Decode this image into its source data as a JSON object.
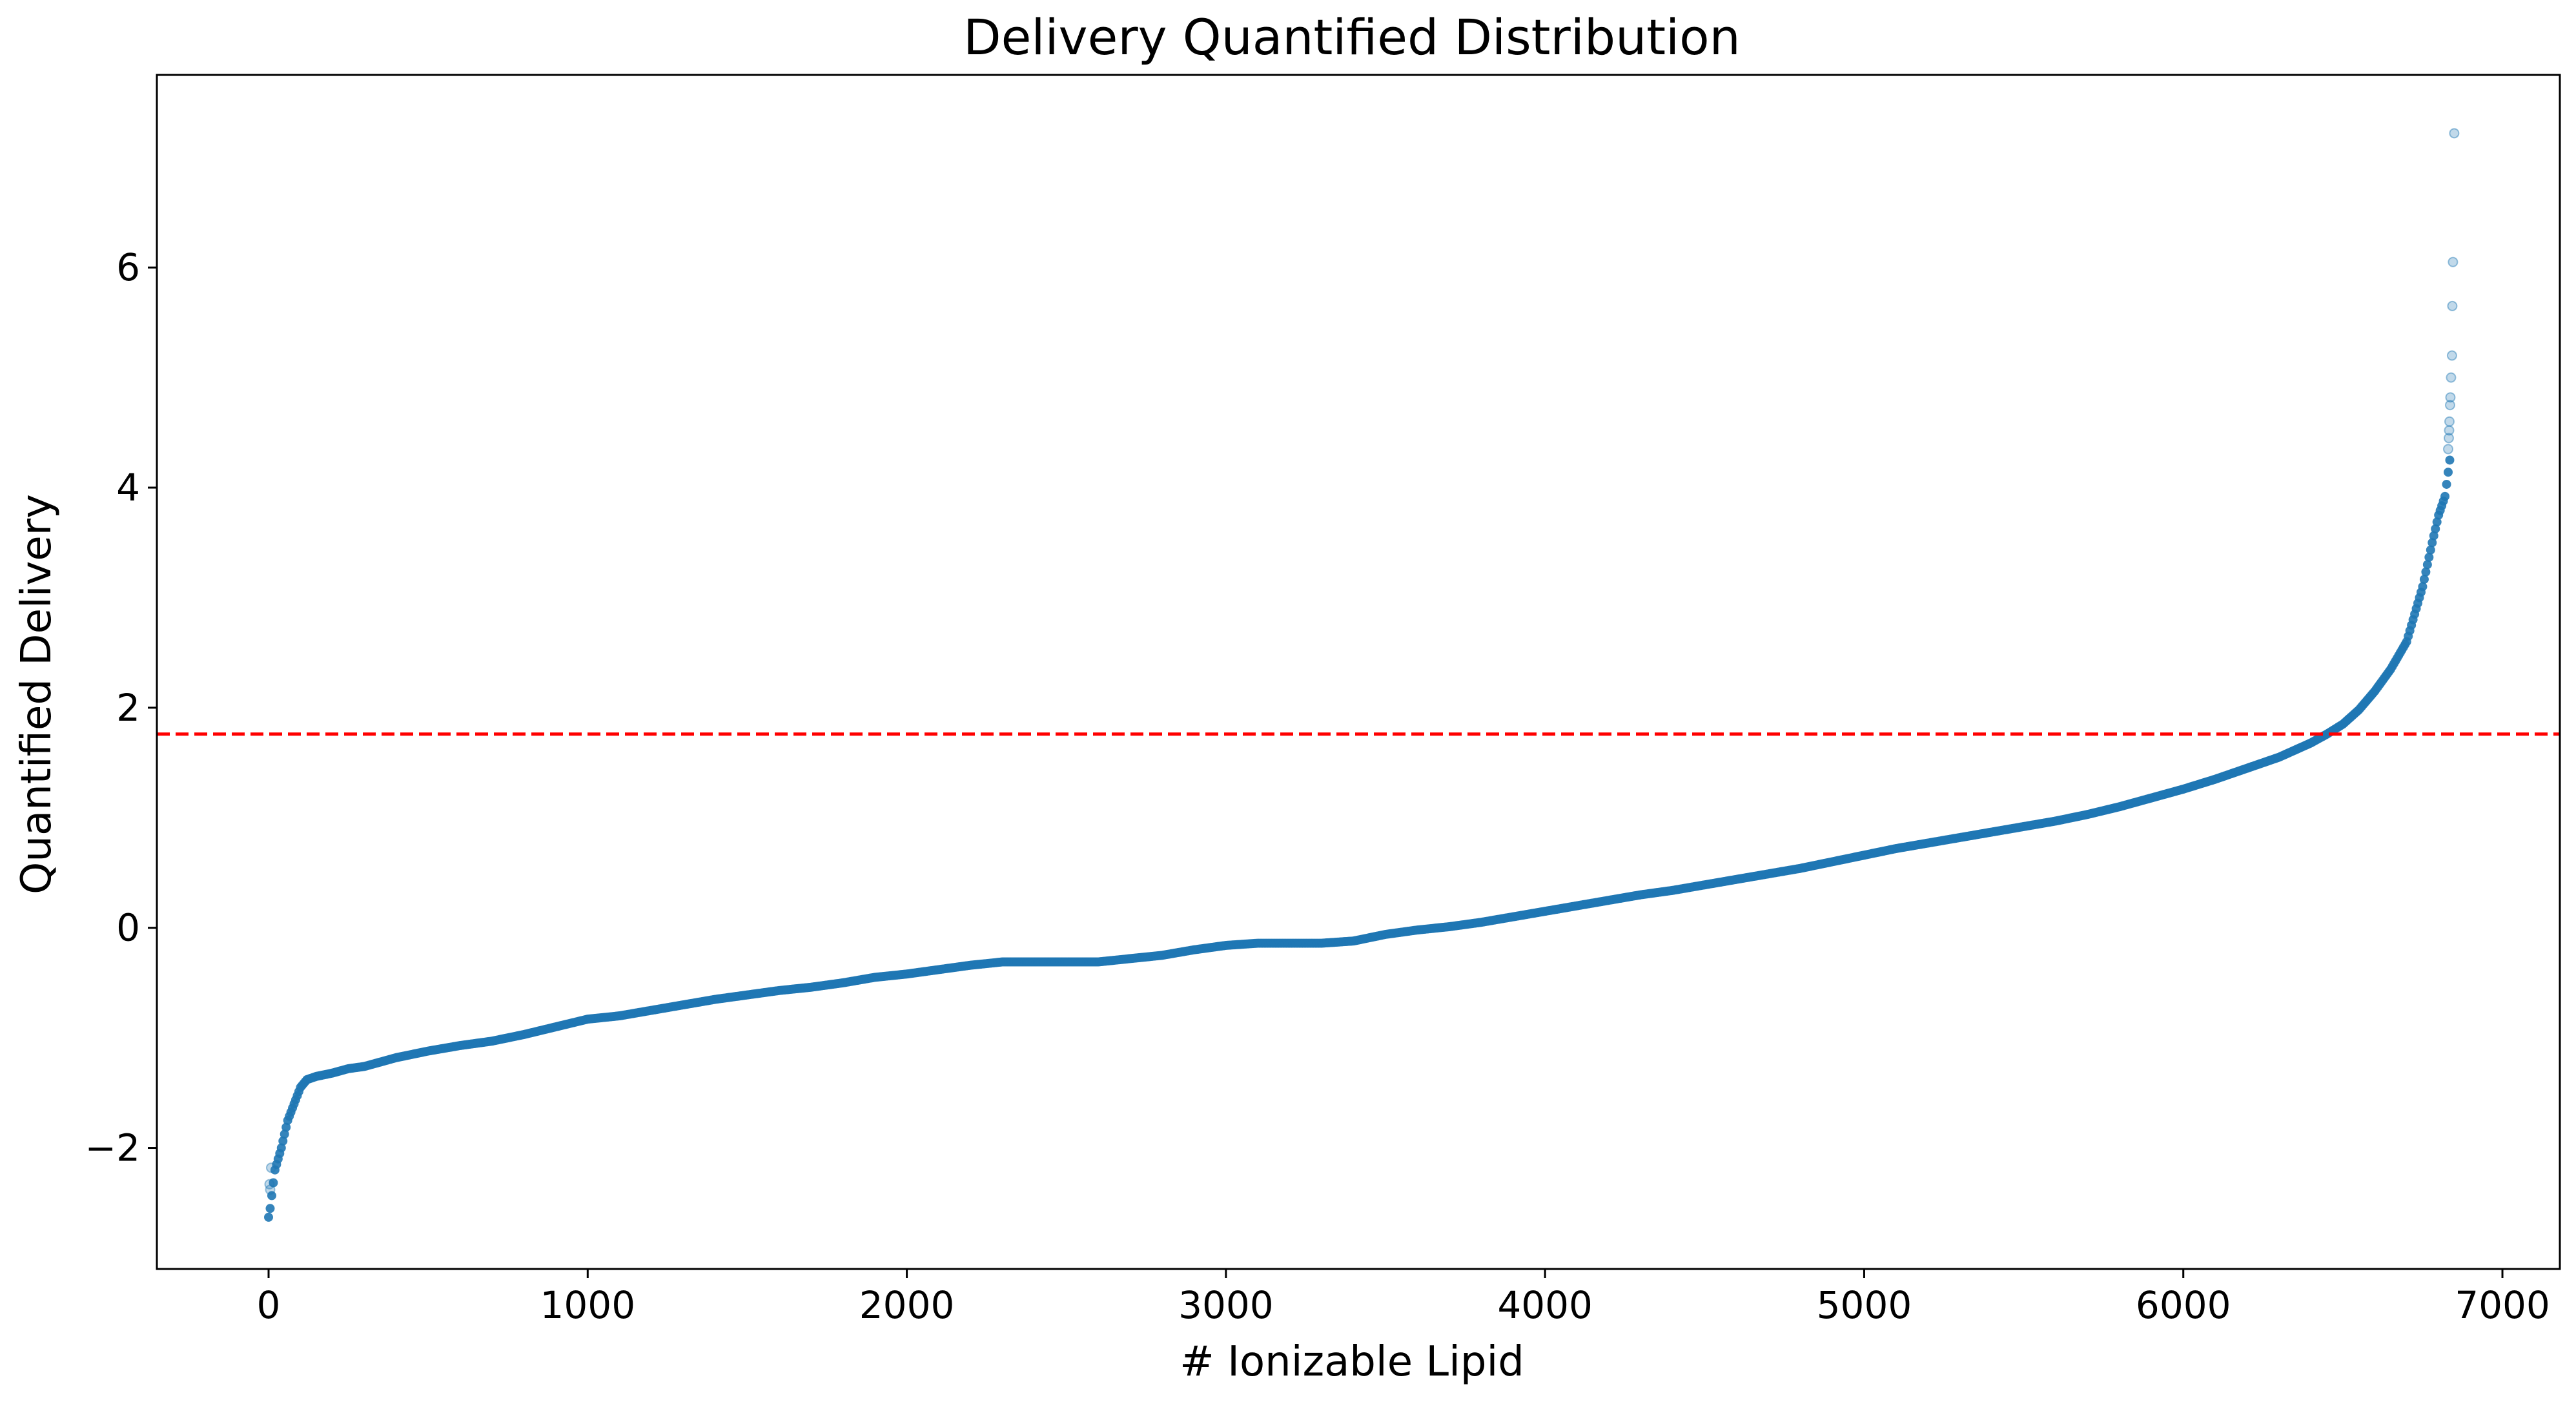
{
  "chart_data": {
    "type": "scatter",
    "title": "Delivery Quantified Distribution",
    "xlabel": "# Ionizable Lipid",
    "ylabel": "Quantified Delivery",
    "xlim": [
      -350,
      7180
    ],
    "ylim": [
      -3.1,
      7.75
    ],
    "x_ticks": [
      0,
      1000,
      2000,
      3000,
      4000,
      5000,
      6000,
      7000
    ],
    "y_ticks": [
      -2,
      0,
      2,
      4,
      6
    ],
    "x_tick_labels": [
      "0",
      "1000",
      "2000",
      "3000",
      "4000",
      "5000",
      "6000",
      "7000"
    ],
    "y_tick_labels": [
      "−2",
      "0",
      "2",
      "4",
      "6"
    ],
    "grid": false,
    "n_points": 6850,
    "series": [
      {
        "color": "#1f77b4",
        "curve_x": [
          0,
          5,
          20,
          40,
          60,
          80,
          100,
          120,
          150,
          200,
          250,
          300,
          400,
          500,
          600,
          700,
          800,
          900,
          1000,
          1100,
          1200,
          1300,
          1400,
          1500,
          1600,
          1700,
          1800,
          1900,
          2000,
          2100,
          2200,
          2300,
          2400,
          2500,
          2600,
          2700,
          2800,
          2900,
          3000,
          3100,
          3200,
          3300,
          3400,
          3500,
          3600,
          3700,
          3800,
          3900,
          4000,
          4100,
          4200,
          4300,
          4400,
          4500,
          4600,
          4700,
          4800,
          4900,
          5000,
          5100,
          5200,
          5300,
          5400,
          5500,
          5600,
          5700,
          5800,
          5900,
          6000,
          6100,
          6200,
          6300,
          6400,
          6450,
          6500,
          6550,
          6600,
          6650,
          6700,
          6750,
          6780,
          6800,
          6820,
          6835
        ],
        "curve_y": [
          -2.63,
          -2.55,
          -2.2,
          -2.0,
          -1.75,
          -1.6,
          -1.45,
          -1.38,
          -1.35,
          -1.32,
          -1.28,
          -1.26,
          -1.18,
          -1.12,
          -1.07,
          -1.03,
          -0.97,
          -0.9,
          -0.83,
          -0.8,
          -0.75,
          -0.7,
          -0.65,
          -0.61,
          -0.57,
          -0.54,
          -0.5,
          -0.45,
          -0.42,
          -0.38,
          -0.34,
          -0.31,
          -0.31,
          -0.31,
          -0.31,
          -0.28,
          -0.25,
          -0.2,
          -0.16,
          -0.14,
          -0.14,
          -0.14,
          -0.12,
          -0.06,
          -0.02,
          0.01,
          0.05,
          0.1,
          0.15,
          0.2,
          0.25,
          0.3,
          0.34,
          0.39,
          0.44,
          0.49,
          0.54,
          0.6,
          0.66,
          0.72,
          0.77,
          0.82,
          0.87,
          0.92,
          0.97,
          1.03,
          1.1,
          1.18,
          1.26,
          1.35,
          1.45,
          1.55,
          1.68,
          1.76,
          1.85,
          1.98,
          2.15,
          2.35,
          2.6,
          3.1,
          3.5,
          3.75,
          3.92,
          4.25
        ],
        "outliers": [
          {
            "x": 5,
            "y": -2.38
          },
          {
            "x": 3,
            "y": -2.33
          },
          {
            "x": 8,
            "y": -2.18
          },
          {
            "x": 6830,
            "y": 4.35
          },
          {
            "x": 6832,
            "y": 4.45
          },
          {
            "x": 6833,
            "y": 4.52
          },
          {
            "x": 6834,
            "y": 4.6
          },
          {
            "x": 6836,
            "y": 4.75
          },
          {
            "x": 6837,
            "y": 4.82
          },
          {
            "x": 6839,
            "y": 5.0
          },
          {
            "x": 6842,
            "y": 5.2
          },
          {
            "x": 6843,
            "y": 5.65
          },
          {
            "x": 6845,
            "y": 6.05
          },
          {
            "x": 6849,
            "y": 7.22
          }
        ]
      }
    ],
    "reference_line": {
      "y": 1.76,
      "color": "#ff0000",
      "style": "dashed"
    }
  }
}
